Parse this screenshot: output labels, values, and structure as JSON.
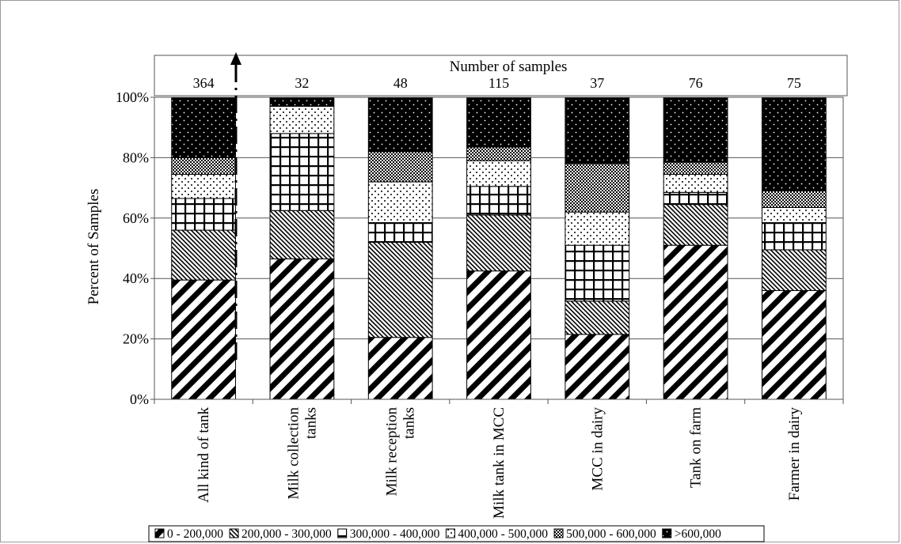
{
  "chart_data": {
    "type": "bar",
    "stacked": true,
    "ylabel": "Percent of Samples",
    "ylim": [
      0,
      100
    ],
    "yticks": [
      "0%",
      "20%",
      "40%",
      "60%",
      "80%",
      "100%"
    ],
    "grid": true,
    "categories": [
      "All kind of tank",
      "Milk collection tanks",
      "Milk reception tanks",
      "Milk tank in MCC",
      "MCC in dairy",
      "Tank on farm",
      "Farmer in dairy"
    ],
    "category_label_lines": [
      [
        "All kind of tank"
      ],
      [
        "Milk collection",
        "tanks"
      ],
      [
        "Milk reception",
        "tanks"
      ],
      [
        "Milk tank in MCC"
      ],
      [
        "MCC in dairy"
      ],
      [
        "Tank on farm"
      ],
      [
        "Farmer in dairy"
      ]
    ],
    "samples_header": "Number of samples",
    "samples": [
      "364",
      "32",
      "48",
      "115",
      "37",
      "76",
      "75"
    ],
    "series": [
      {
        "name": "0 - 200,000",
        "values": [
          39.5,
          46.5,
          20.5,
          42.5,
          21.5,
          51,
          36
        ]
      },
      {
        "name": "200,000 - 300,000",
        "values": [
          16.5,
          16,
          31.5,
          18.5,
          11,
          13.5,
          13.5
        ]
      },
      {
        "name": "300,000 - 400,000",
        "values": [
          10.5,
          25.5,
          6.5,
          9.5,
          18.5,
          4,
          9
        ]
      },
      {
        "name": "400,000 - 500,000",
        "values": [
          8,
          9,
          13.5,
          8.5,
          11,
          6,
          5
        ]
      },
      {
        "name": "500,000 - 600,000",
        "values": [
          5.5,
          0,
          10,
          4.5,
          16,
          4,
          5.5
        ]
      },
      {
        "name": ">600,000",
        "values": [
          20,
          3,
          18,
          16.5,
          22,
          21.5,
          31
        ]
      }
    ],
    "legend_position": "bottom"
  }
}
